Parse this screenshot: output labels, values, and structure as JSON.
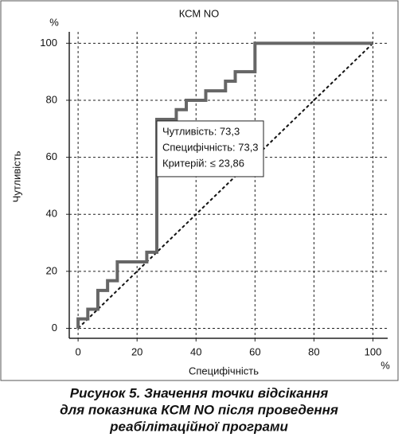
{
  "chart_data": {
    "type": "line",
    "title": "КСМ NO",
    "xlabel": "Специфічність",
    "ylabel": "Чутливість",
    "x_unit": "%",
    "y_unit": "%",
    "xlim": [
      -3,
      105
    ],
    "ylim": [
      -3.5,
      104
    ],
    "xticks": [
      0,
      20,
      40,
      60,
      80,
      100
    ],
    "yticks": [
      0,
      20,
      40,
      60,
      80,
      100
    ],
    "grid": true,
    "series": [
      {
        "color": "#666666",
        "x": [
          0,
          0,
          3.3,
          3.3,
          6.7,
          6.7,
          10,
          10,
          13.3,
          13.3,
          23.3,
          23.3,
          26.7,
          26.7,
          33.3,
          33.3,
          36.7,
          36.7,
          43.3,
          43.3,
          50,
          50,
          53.3,
          53.3,
          60,
          60,
          100
        ],
        "values": [
          0,
          3.3,
          3.3,
          6.7,
          6.7,
          13.3,
          13.3,
          16.7,
          16.7,
          23.3,
          23.3,
          26.7,
          26.7,
          73.3,
          73.3,
          76.7,
          76.7,
          80,
          80,
          83.3,
          83.3,
          86.7,
          86.7,
          90,
          90,
          100,
          100
        ]
      }
    ],
    "diagonal": {
      "x": [
        0,
        100
      ],
      "values": [
        0,
        100
      ]
    },
    "annotation": {
      "x": 26.7,
      "y": 73.3,
      "lines": [
        "Чутливість: 73,3",
        "Специфічність: 73,3",
        "Критерій: ≤ 23,86"
      ]
    },
    "caption": [
      "Рисунок 5. Значення точки відсікання",
      "для показника КСМ NO після проведення",
      "реабілітаційної програми"
    ]
  }
}
